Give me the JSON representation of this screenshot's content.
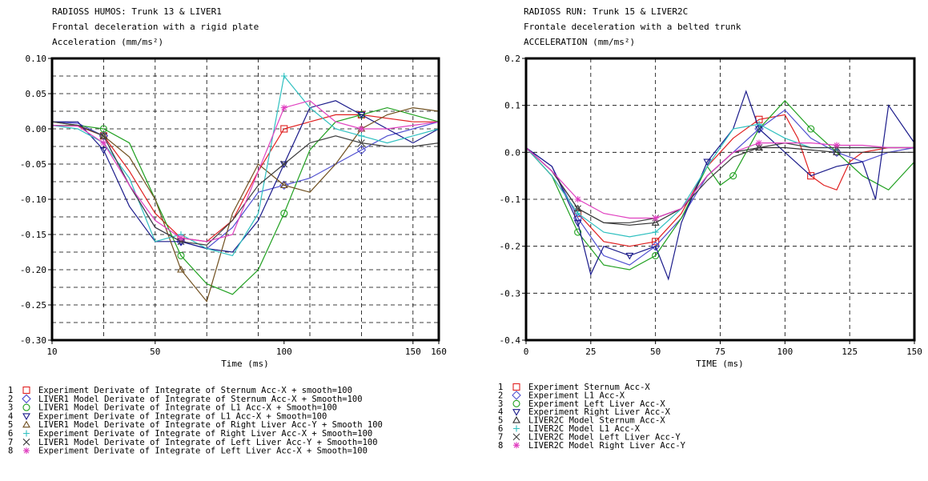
{
  "chart_data": [
    {
      "type": "line",
      "id": "left",
      "title_lines": [
        "RADIOSS HUMOS: Trunk 13 & LIVER1",
        "Frontal deceleration with a rigid plate",
        "Acceleration (mm/ms²)"
      ],
      "xlabel": "Time (ms)",
      "ylabel": "",
      "xlim": [
        10,
        160
      ],
      "ylim": [
        -0.3,
        0.1
      ],
      "xticks": [
        10,
        50,
        100,
        150,
        160
      ],
      "xtick_labels": [
        "10",
        "50",
        "100",
        "150",
        "160"
      ],
      "yticks": [
        -0.3,
        -0.25,
        -0.2,
        -0.15,
        -0.1,
        -0.05,
        0.0,
        0.05,
        0.1
      ],
      "ytick_labels": [
        "-0.30",
        "-0.25",
        "-0.20",
        "-0.15",
        "-0.10",
        "-0.05",
        "0.00",
        "0.05",
        "0.10"
      ],
      "vgrid": [
        30,
        50,
        70,
        90,
        110,
        130,
        150
      ],
      "hgrid": [
        -0.275,
        -0.25,
        -0.225,
        -0.2,
        -0.175,
        -0.15,
        -0.125,
        -0.1,
        -0.075,
        -0.05,
        -0.025,
        0,
        0.025,
        0.05,
        0.075
      ],
      "grid": true,
      "legend_position": "bottom",
      "series": [
        {
          "name": "Experiment Derivate of Integrate of Sternum Acc-X + smooth=100",
          "color": "#e02020",
          "marker": "square",
          "x": [
            10,
            20,
            30,
            40,
            50,
            60,
            70,
            80,
            90,
            100,
            110,
            120,
            130,
            140,
            150,
            160
          ],
          "y": [
            0.005,
            0.004,
            -0.01,
            -0.06,
            -0.12,
            -0.155,
            -0.16,
            -0.13,
            -0.06,
            0.0,
            0.01,
            0.02,
            0.02,
            0.015,
            0.01,
            0.01
          ]
        },
        {
          "name": "LIVER1 Model Derivate of Integrate of Sternum Acc-X + Smooth=100",
          "color": "#5050d0",
          "marker": "diamond",
          "x": [
            10,
            20,
            30,
            40,
            50,
            60,
            70,
            80,
            90,
            100,
            110,
            120,
            130,
            140,
            150,
            160
          ],
          "y": [
            0.01,
            0.008,
            -0.01,
            -0.08,
            -0.14,
            -0.16,
            -0.17,
            -0.14,
            -0.09,
            -0.08,
            -0.07,
            -0.05,
            -0.03,
            -0.01,
            0.0,
            0.01
          ]
        },
        {
          "name": "LIVER1 Model Derivate of Integrate of L1 Acc-X + Smooth=100",
          "color": "#20a020",
          "marker": "circle",
          "x": [
            10,
            20,
            30,
            40,
            50,
            60,
            70,
            80,
            90,
            100,
            110,
            120,
            130,
            140,
            150,
            160
          ],
          "y": [
            0.005,
            0.005,
            0.0,
            -0.02,
            -0.1,
            -0.18,
            -0.22,
            -0.235,
            -0.2,
            -0.12,
            -0.03,
            0.01,
            0.02,
            0.03,
            0.02,
            0.01
          ]
        },
        {
          "name": "Experiment Derivate of Integrate of L1 Acc-X + Smooth=100",
          "color": "#1a1a8a",
          "marker": "triangle-down",
          "x": [
            10,
            20,
            30,
            40,
            50,
            60,
            70,
            80,
            90,
            100,
            110,
            120,
            130,
            140,
            150,
            160
          ],
          "y": [
            0.01,
            0.01,
            -0.03,
            -0.11,
            -0.16,
            -0.16,
            -0.17,
            -0.175,
            -0.13,
            -0.05,
            0.03,
            0.04,
            0.02,
            0.0,
            -0.02,
            0.0
          ]
        },
        {
          "name": "LIVER1 Model Derivate of Integrate of Right Liver Acc-Y + Smooth 100",
          "color": "#705020",
          "marker": "triangle-up",
          "x": [
            10,
            20,
            30,
            40,
            50,
            60,
            70,
            80,
            90,
            100,
            110,
            120,
            130,
            140,
            150,
            160
          ],
          "y": [
            0.01,
            0.005,
            -0.01,
            -0.04,
            -0.1,
            -0.2,
            -0.245,
            -0.12,
            -0.05,
            -0.08,
            -0.09,
            -0.05,
            0.0,
            0.02,
            0.03,
            0.025
          ]
        },
        {
          "name": "Experiment Derivate of Integrate of Right Liver Acc-X + Smooth=100",
          "color": "#30c0c0",
          "marker": "plus",
          "x": [
            10,
            20,
            30,
            40,
            50,
            60,
            70,
            80,
            90,
            100,
            110,
            120,
            130,
            140,
            150,
            160
          ],
          "y": [
            0.005,
            0.0,
            -0.02,
            -0.07,
            -0.16,
            -0.15,
            -0.17,
            -0.18,
            -0.12,
            0.075,
            0.03,
            0.0,
            -0.01,
            -0.02,
            -0.01,
            0.0
          ]
        },
        {
          "name": "LIVER1 Model Derivate of Integrate of Left Liver Acc-Y + Smooth=100",
          "color": "#404040",
          "marker": "cross",
          "x": [
            10,
            20,
            30,
            40,
            50,
            60,
            70,
            80,
            90,
            100,
            110,
            120,
            130,
            140,
            150,
            160
          ],
          "y": [
            0.01,
            0.005,
            -0.01,
            -0.08,
            -0.14,
            -0.16,
            -0.165,
            -0.13,
            -0.08,
            -0.05,
            -0.02,
            -0.01,
            -0.02,
            -0.025,
            -0.025,
            -0.02
          ]
        },
        {
          "name": "Experiment Derivate of Integrate of Left Liver Acc-X + Smooth=100",
          "color": "#e040c0",
          "marker": "asterisk",
          "x": [
            10,
            20,
            30,
            40,
            50,
            60,
            70,
            80,
            90,
            100,
            110,
            120,
            130,
            140,
            150,
            160
          ],
          "y": [
            0.005,
            0.004,
            -0.02,
            -0.08,
            -0.13,
            -0.155,
            -0.16,
            -0.15,
            -0.06,
            0.03,
            0.04,
            0.01,
            0.0,
            0.0,
            0.005,
            0.01
          ]
        }
      ]
    },
    {
      "type": "line",
      "id": "right",
      "title_lines": [
        "RADIOSS RUN: Trunk 15 & LIVER2C",
        "Frontale deceleration with a belted trunk",
        "ACCELERATION (mm/ms²)"
      ],
      "xlabel": "TIME (ms)",
      "ylabel": "",
      "xlim": [
        0,
        150
      ],
      "ylim": [
        -0.4,
        0.2
      ],
      "xticks": [
        0,
        25,
        50,
        75,
        100,
        125,
        150
      ],
      "xtick_labels": [
        "0",
        "25",
        "50",
        "75",
        "100",
        "125",
        "150"
      ],
      "yticks": [
        -0.4,
        -0.3,
        -0.2,
        -0.1,
        0.0,
        0.1,
        0.2
      ],
      "ytick_labels": [
        "-0.4",
        "-0.3",
        "-0.2",
        "-0.1",
        "0.0",
        "0.1",
        "0.2"
      ],
      "vgrid": [
        25,
        50,
        75,
        100,
        125
      ],
      "hgrid": [
        -0.3,
        -0.2,
        -0.1,
        0,
        0.1
      ],
      "grid": true,
      "legend_position": "bottom",
      "series": [
        {
          "name": "Experiment Sternum Acc-X",
          "color": "#e02020",
          "marker": "square",
          "x": [
            0,
            10,
            20,
            30,
            40,
            50,
            60,
            70,
            80,
            90,
            100,
            105,
            110,
            115,
            120,
            125,
            130,
            140,
            150
          ],
          "y": [
            0.01,
            -0.05,
            -0.13,
            -0.19,
            -0.2,
            -0.19,
            -0.13,
            -0.03,
            0.03,
            0.07,
            0.08,
            0.03,
            -0.05,
            -0.07,
            -0.08,
            -0.02,
            0.0,
            0.01,
            0.01
          ]
        },
        {
          "name": "Experiment L1 Acc-X",
          "color": "#5050d0",
          "marker": "diamond",
          "x": [
            0,
            10,
            20,
            30,
            40,
            50,
            60,
            70,
            80,
            90,
            100,
            110,
            120,
            130,
            140,
            150
          ],
          "y": [
            0.01,
            -0.03,
            -0.14,
            -0.22,
            -0.24,
            -0.2,
            -0.14,
            -0.05,
            0.0,
            0.05,
            0.09,
            0.03,
            0.0,
            -0.02,
            0.0,
            0.01
          ]
        },
        {
          "name": "Experiment Left Liver Acc-X",
          "color": "#20a020",
          "marker": "circle",
          "x": [
            0,
            10,
            20,
            30,
            40,
            50,
            60,
            70,
            75,
            80,
            90,
            100,
            110,
            120,
            130,
            140,
            150
          ],
          "y": [
            0.01,
            -0.05,
            -0.17,
            -0.24,
            -0.25,
            -0.22,
            -0.14,
            -0.03,
            -0.07,
            -0.05,
            0.05,
            0.11,
            0.05,
            0.0,
            -0.05,
            -0.08,
            -0.02
          ]
        },
        {
          "name": "Experiment Right Liver Acc-X",
          "color": "#1a1a8a",
          "marker": "triangle-down",
          "x": [
            0,
            10,
            20,
            25,
            30,
            40,
            50,
            55,
            60,
            70,
            80,
            85,
            90,
            100,
            110,
            120,
            130,
            135,
            140,
            150
          ],
          "y": [
            0.01,
            -0.03,
            -0.15,
            -0.26,
            -0.2,
            -0.22,
            -0.2,
            -0.27,
            -0.15,
            -0.02,
            0.05,
            0.13,
            0.05,
            0.0,
            -0.05,
            -0.03,
            -0.02,
            -0.1,
            0.1,
            0.02
          ]
        },
        {
          "name": "LIVER2C Model Sternum Acc-X",
          "color": "#303030",
          "marker": "triangle-up",
          "x": [
            0,
            10,
            20,
            30,
            40,
            50,
            60,
            70,
            80,
            90,
            100,
            110,
            120,
            130,
            140,
            150
          ],
          "y": [
            0.01,
            -0.04,
            -0.12,
            -0.15,
            -0.155,
            -0.15,
            -0.12,
            -0.05,
            0.0,
            0.01,
            0.01,
            0.005,
            0.0,
            0.0,
            0.0,
            0.0
          ]
        },
        {
          "name": "LIVER2C Model L1 Acc-X",
          "color": "#30c0c0",
          "marker": "plus",
          "x": [
            0,
            10,
            20,
            30,
            40,
            50,
            60,
            70,
            80,
            90,
            100,
            110,
            120,
            130,
            140,
            150
          ],
          "y": [
            0.01,
            -0.05,
            -0.13,
            -0.17,
            -0.18,
            -0.17,
            -0.12,
            -0.03,
            0.05,
            0.06,
            0.03,
            0.01,
            0.01,
            0.01,
            0.01,
            0.01
          ]
        },
        {
          "name": "LIVER2C Model Left Liver Acc-Y",
          "color": "#404040",
          "marker": "cross",
          "x": [
            0,
            10,
            20,
            30,
            40,
            50,
            60,
            70,
            80,
            90,
            100,
            110,
            120,
            130,
            140,
            150
          ],
          "y": [
            0.01,
            -0.04,
            -0.12,
            -0.15,
            -0.15,
            -0.14,
            -0.12,
            -0.06,
            -0.01,
            0.01,
            0.02,
            0.01,
            0.01,
            0.01,
            0.01,
            0.01
          ]
        },
        {
          "name": "LIVER2C Model Right Liver Acc-Y",
          "color": "#e040c0",
          "marker": "asterisk",
          "x": [
            0,
            10,
            20,
            30,
            40,
            50,
            60,
            70,
            80,
            90,
            100,
            110,
            120,
            130,
            140,
            150
          ],
          "y": [
            0.01,
            -0.04,
            -0.1,
            -0.13,
            -0.14,
            -0.14,
            -0.12,
            -0.05,
            0.0,
            0.02,
            0.02,
            0.02,
            0.015,
            0.015,
            0.01,
            0.01
          ]
        }
      ]
    }
  ]
}
